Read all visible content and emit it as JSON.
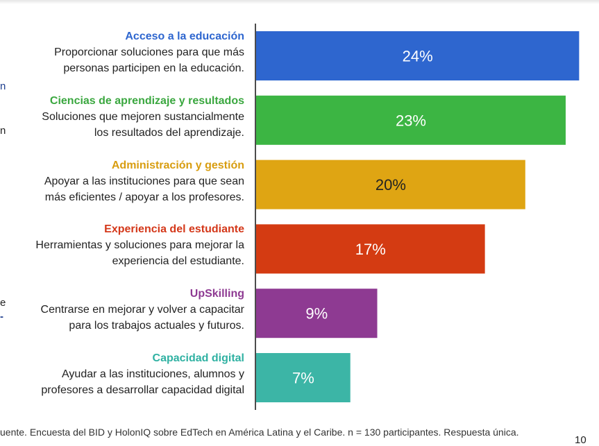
{
  "chart_data": {
    "type": "bar",
    "orientation": "horizontal",
    "categories": [
      "Acceso a la educación",
      "Ciencias de aprendizaje y resultados",
      "Administración y gestión",
      "Experiencia del estudiante",
      "UpSkilling",
      "Capacidad digital"
    ],
    "descriptions": [
      [
        "Proporcionar soluciones para que más",
        "personas participen en la educación."
      ],
      [
        "Soluciones que mejoren sustancialmente",
        "los resultados del aprendizaje."
      ],
      [
        "Apoyar a las instituciones para que sean",
        "más eficientes  / apoyar a los profesores."
      ],
      [
        "Herramientas y soluciones para mejorar la",
        "experiencia del estudiante."
      ],
      [
        "Centrarse en mejorar y volver a capacitar",
        "para los trabajos actuales y futuros."
      ],
      [
        "Ayudar a las instituciones, alumnos y",
        "profesores a desarrollar capacidad digital"
      ]
    ],
    "values": [
      24,
      23,
      20,
      17,
      9,
      7
    ],
    "value_labels": [
      "24%",
      "23%",
      "20%",
      "17%",
      "9%",
      "7%"
    ],
    "colors": [
      "#2e66cf",
      "#3cb543",
      "#dfa513",
      "#d43b12",
      "#8e3a92",
      "#3cb5a6"
    ],
    "label_colors": [
      "#2e66cf",
      "#3aa73f",
      "#d89d10",
      "#d4381a",
      "#8e3a92",
      "#2fb1a2"
    ],
    "value_text_colors": [
      "#ffffff",
      "#ffffff",
      "#222222",
      "#ffffff",
      "#ffffff",
      "#ffffff"
    ],
    "xlim": [
      0,
      24.6
    ],
    "grid": false,
    "title": "",
    "xlabel": "",
    "ylabel": ""
  },
  "footer": {
    "source": "uente. Encuesta del BID y HolonIQ sobre EdTech en América Latina y el Caribe. n = 130 participantes. Respuesta única.",
    "page_number": "10"
  },
  "edge_marks": [
    "n",
    "n",
    "e",
    "-"
  ]
}
